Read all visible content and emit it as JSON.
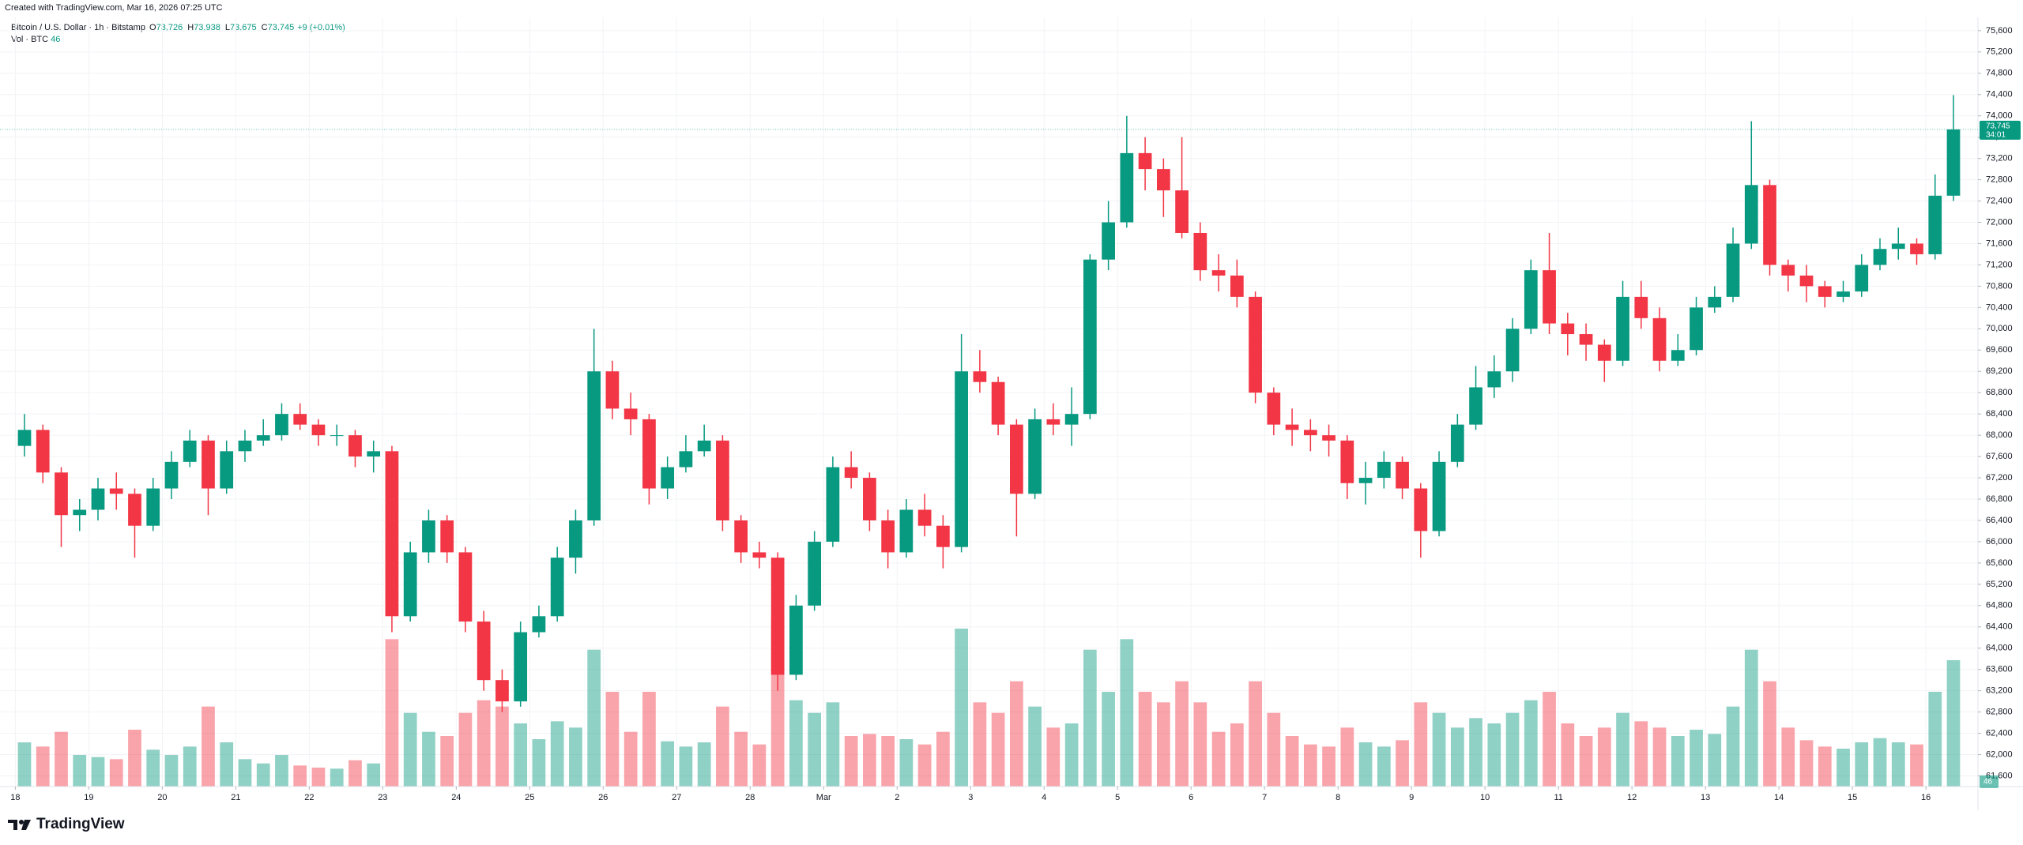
{
  "header": "Created with TradingView.com, Mar 16, 2026 07:25 UTC",
  "brand": "TradingView",
  "chart_data": {
    "type": "candlestick",
    "title": "Bitcoin / U.S. Dollar · 1h · Bitstamp",
    "ohlc_legend": [
      {
        "name": "O",
        "value": 73726,
        "label": "73,726"
      },
      {
        "name": "H",
        "value": 73938,
        "label": "73,938"
      },
      {
        "name": "L",
        "value": 73675,
        "label": "73,675"
      },
      {
        "name": "C",
        "value": 73745,
        "label": "73,745"
      }
    ],
    "change": "+9 (+0.01%)",
    "volume_title": "Vol · BTC",
    "volume_last": 46,
    "last_price": {
      "value": 73745,
      "label": "73,745"
    },
    "countdown": "34:01",
    "up_color": "#089981",
    "down_color": "#f23645",
    "grid": true,
    "x": [
      0,
      6,
      12,
      18,
      24,
      30,
      36,
      42,
      48,
      54,
      60,
      66,
      72,
      78,
      84,
      90,
      96,
      102,
      108,
      114,
      120,
      126,
      132,
      138,
      144,
      150,
      156,
      162,
      168,
      174,
      180,
      186,
      192,
      198,
      204,
      210,
      216,
      222,
      228,
      234,
      240,
      246,
      252,
      258,
      264,
      270,
      276,
      282,
      288,
      294,
      300,
      306,
      312,
      318,
      324,
      330,
      336,
      342,
      348,
      354,
      360,
      366,
      372,
      378,
      384,
      390,
      396,
      402,
      408,
      414,
      420,
      426,
      432,
      438,
      444,
      450,
      456,
      462,
      468,
      474,
      480,
      486,
      492,
      498,
      504,
      510,
      516,
      522,
      528,
      534,
      540,
      546,
      552,
      558,
      564,
      570,
      576,
      582,
      588,
      594,
      600,
      606,
      612,
      618,
      624,
      630
    ],
    "open": [
      67800,
      68100,
      67300,
      66500,
      66600,
      67000,
      66900,
      66300,
      67000,
      67500,
      67900,
      67000,
      67700,
      67900,
      68000,
      68400,
      68200,
      68000,
      68000,
      67600,
      67700,
      64600,
      65800,
      66400,
      65800,
      64500,
      63400,
      63000,
      64300,
      64600,
      65700,
      66400,
      69200,
      68500,
      68300,
      67000,
      67400,
      67700,
      67900,
      66400,
      65800,
      65700,
      63500,
      64800,
      66000,
      67400,
      67200,
      66400,
      65800,
      66600,
      66300,
      65900,
      69200,
      69000,
      68200,
      66900,
      68300,
      68200,
      68400,
      71300,
      72000,
      73300,
      73000,
      72600,
      71800,
      71100,
      71000,
      70600,
      68800,
      68200,
      68100,
      68000,
      67900,
      67100,
      67200,
      67500,
      67000,
      66200,
      67500,
      68200,
      68900,
      69200,
      70000,
      71100,
      70100,
      69900,
      69700,
      69400,
      70600,
      70200,
      69400,
      69600,
      70400,
      70600,
      71600,
      72700,
      71200,
      71000,
      70800,
      70600,
      70700,
      71200,
      71500,
      71600,
      71400,
      72500
    ],
    "high": [
      68400,
      68200,
      67400,
      66800,
      67200,
      67300,
      67000,
      67200,
      67700,
      68100,
      68000,
      67900,
      68100,
      68300,
      68600,
      68600,
      68300,
      68200,
      68100,
      67900,
      67800,
      66000,
      66600,
      66500,
      65900,
      64700,
      63600,
      64500,
      64800,
      65900,
      66600,
      70000,
      69400,
      68800,
      68400,
      67600,
      68000,
      68200,
      68000,
      66500,
      66000,
      65800,
      65000,
      66200,
      67600,
      67700,
      67300,
      66600,
      66800,
      66900,
      66500,
      69900,
      69600,
      69100,
      68300,
      68500,
      68600,
      68900,
      71400,
      72400,
      74000,
      73600,
      73200,
      73600,
      72000,
      71400,
      71300,
      70700,
      68900,
      68500,
      68300,
      68200,
      68000,
      67500,
      67700,
      67600,
      67100,
      67700,
      68400,
      69300,
      69500,
      70200,
      71300,
      71800,
      70300,
      70100,
      69800,
      70900,
      70900,
      70400,
      69900,
      70600,
      70800,
      71900,
      73900,
      72800,
      71300,
      71200,
      70900,
      70900,
      71400,
      71700,
      71900,
      71700,
      72900,
      74390
    ],
    "low": [
      67600,
      67100,
      65900,
      66200,
      66400,
      66600,
      65700,
      66200,
      66800,
      67400,
      66500,
      66900,
      67500,
      67800,
      67900,
      68100,
      67800,
      67800,
      67400,
      67300,
      64300,
      64500,
      65600,
      65600,
      64300,
      63200,
      62800,
      62900,
      64200,
      64500,
      65400,
      66300,
      68300,
      68000,
      66700,
      66800,
      67300,
      67600,
      66200,
      65600,
      65500,
      63200,
      63400,
      64700,
      65900,
      67000,
      66200,
      65500,
      65700,
      66100,
      65500,
      65800,
      68800,
      68000,
      66100,
      66800,
      68000,
      67800,
      68300,
      71100,
      71900,
      72600,
      72100,
      71700,
      70900,
      70700,
      70400,
      68600,
      68000,
      67800,
      67700,
      67600,
      66800,
      66700,
      67000,
      66800,
      65700,
      66100,
      67400,
      68100,
      68700,
      69000,
      69900,
      69900,
      69500,
      69400,
      69000,
      69300,
      70000,
      69200,
      69300,
      69500,
      70300,
      70500,
      71500,
      71000,
      70700,
      70500,
      70400,
      70500,
      70600,
      71100,
      71300,
      71200,
      71300,
      72400
    ],
    "close": [
      68100,
      67300,
      66500,
      66600,
      67000,
      66900,
      66300,
      67000,
      67500,
      67900,
      67000,
      67700,
      67900,
      68000,
      68400,
      68200,
      68000,
      68000,
      67600,
      67700,
      64600,
      65800,
      66400,
      65800,
      64500,
      63400,
      63000,
      64300,
      64600,
      65700,
      66400,
      69200,
      68500,
      68300,
      67000,
      67400,
      67700,
      67900,
      66400,
      65800,
      65700,
      63500,
      64800,
      66000,
      67400,
      67200,
      66400,
      65800,
      66600,
      66300,
      65900,
      69200,
      69000,
      68200,
      66900,
      68300,
      68200,
      68400,
      71300,
      72000,
      73300,
      73000,
      72600,
      71800,
      71100,
      71000,
      70600,
      68800,
      68200,
      68100,
      68000,
      67900,
      67100,
      67200,
      67500,
      67000,
      66200,
      67500,
      68200,
      68900,
      69200,
      70000,
      71100,
      70100,
      69900,
      69700,
      69400,
      70600,
      70200,
      69400,
      69600,
      70400,
      70600,
      71600,
      72700,
      71200,
      71000,
      70800,
      70600,
      70700,
      71200,
      71500,
      71600,
      71400,
      72500,
      73745
    ],
    "volume": [
      420,
      380,
      520,
      300,
      280,
      260,
      540,
      350,
      300,
      380,
      760,
      420,
      260,
      220,
      300,
      200,
      180,
      170,
      250,
      220,
      1400,
      700,
      520,
      480,
      700,
      820,
      760,
      600,
      450,
      620,
      560,
      1300,
      900,
      520,
      900,
      430,
      380,
      420,
      760,
      520,
      400,
      1600,
      820,
      700,
      800,
      480,
      500,
      480,
      450,
      400,
      520,
      1500,
      800,
      700,
      1000,
      760,
      560,
      600,
      1300,
      900,
      1400,
      900,
      800,
      1000,
      800,
      520,
      600,
      1000,
      700,
      480,
      400,
      380,
      560,
      420,
      380,
      440,
      800,
      700,
      560,
      650,
      600,
      700,
      820,
      900,
      600,
      480,
      560,
      700,
      620,
      560,
      480,
      540,
      500,
      760,
      1300,
      1000,
      560,
      440,
      380,
      360,
      420,
      460,
      420,
      400,
      900,
      1200
    ],
    "vlim": [
      0,
      1800
    ],
    "xlim": [
      -5,
      641
    ],
    "xticks": [
      {
        "value": 0,
        "label": "18"
      },
      {
        "value": 24,
        "label": "19"
      },
      {
        "value": 48,
        "label": "20"
      },
      {
        "value": 72,
        "label": "21"
      },
      {
        "value": 96,
        "label": "22"
      },
      {
        "value": 120,
        "label": "23"
      },
      {
        "value": 144,
        "label": "24"
      },
      {
        "value": 168,
        "label": "25"
      },
      {
        "value": 192,
        "label": "26"
      },
      {
        "value": 216,
        "label": "27"
      },
      {
        "value": 240,
        "label": "28"
      },
      {
        "value": 264,
        "label": "Mar"
      },
      {
        "value": 288,
        "label": "2"
      },
      {
        "value": 312,
        "label": "3"
      },
      {
        "value": 336,
        "label": "4"
      },
      {
        "value": 360,
        "label": "5"
      },
      {
        "value": 384,
        "label": "6"
      },
      {
        "value": 408,
        "label": "7"
      },
      {
        "value": 432,
        "label": "8"
      },
      {
        "value": 456,
        "label": "9"
      },
      {
        "value": 480,
        "label": "10"
      },
      {
        "value": 504,
        "label": "11"
      },
      {
        "value": 528,
        "label": "12"
      },
      {
        "value": 552,
        "label": "13"
      },
      {
        "value": 576,
        "label": "14"
      },
      {
        "value": 600,
        "label": "15"
      },
      {
        "value": 624,
        "label": "16"
      }
    ],
    "ylim": [
      61400,
      75850
    ],
    "yticks": [
      {
        "value": 61600,
        "label": "61,600"
      },
      {
        "value": 62000,
        "label": "62,000"
      },
      {
        "value": 62400,
        "label": "62,400"
      },
      {
        "value": 62800,
        "label": "62,800"
      },
      {
        "value": 63200,
        "label": "63,200"
      },
      {
        "value": 63600,
        "label": "63,600"
      },
      {
        "value": 64000,
        "label": "64,000"
      },
      {
        "value": 64400,
        "label": "64,400"
      },
      {
        "value": 64800,
        "label": "64,800"
      },
      {
        "value": 65200,
        "label": "65,200"
      },
      {
        "value": 65600,
        "label": "65,600"
      },
      {
        "value": 66000,
        "label": "66,000"
      },
      {
        "value": 66400,
        "label": "66,400"
      },
      {
        "value": 66800,
        "label": "66,800"
      },
      {
        "value": 67200,
        "label": "67,200"
      },
      {
        "value": 67600,
        "label": "67,600"
      },
      {
        "value": 68000,
        "label": "68,000"
      },
      {
        "value": 68400,
        "label": "68,400"
      },
      {
        "value": 68800,
        "label": "68,800"
      },
      {
        "value": 69200,
        "label": "69,200"
      },
      {
        "value": 69600,
        "label": "69,600"
      },
      {
        "value": 70000,
        "label": "70,000"
      },
      {
        "value": 70400,
        "label": "70,400"
      },
      {
        "value": 70800,
        "label": "70,800"
      },
      {
        "value": 71200,
        "label": "71,200"
      },
      {
        "value": 71600,
        "label": "71,600"
      },
      {
        "value": 72000,
        "label": "72,000"
      },
      {
        "value": 72400,
        "label": "72,400"
      },
      {
        "value": 72800,
        "label": "72,800"
      },
      {
        "value": 73200,
        "label": "73,200"
      },
      {
        "value": 73600,
        "label": "73,600"
      },
      {
        "value": 74000,
        "label": "74,000"
      },
      {
        "value": 74400,
        "label": "74,400"
      },
      {
        "value": 74800,
        "label": "74,800"
      },
      {
        "value": 75200,
        "label": "75,200"
      },
      {
        "value": 75600,
        "label": "75,600"
      }
    ]
  }
}
